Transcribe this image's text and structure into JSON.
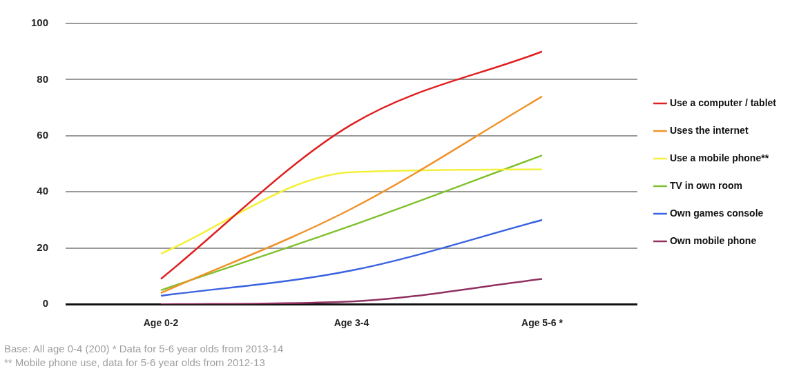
{
  "chart_data": {
    "type": "line",
    "categories": [
      "Age 0-2",
      "Age 3-4",
      "Age 5-6 *"
    ],
    "series": [
      {
        "name": "Use a computer / tablet",
        "color": "#e02020",
        "values": [
          9,
          64,
          90
        ]
      },
      {
        "name": "Uses the internet",
        "color": "#f0922a",
        "values": [
          4,
          34,
          74
        ]
      },
      {
        "name": "Use a mobile phone**",
        "color": "#f4f03a",
        "values": [
          18,
          47,
          48
        ]
      },
      {
        "name": "TV in own room",
        "color": "#80c02c",
        "values": [
          5,
          28,
          53
        ]
      },
      {
        "name": "Own games console",
        "color": "#3a62e0",
        "values": [
          3,
          12,
          30
        ]
      },
      {
        "name": "Own mobile phone",
        "color": "#903060",
        "values": [
          0,
          1,
          9
        ]
      }
    ],
    "ylim": [
      0,
      100
    ],
    "yticks": [
      0,
      20,
      40,
      60,
      80,
      100
    ],
    "grid": "y",
    "legend": "right",
    "marker": "none",
    "line_style": "solid",
    "annotations": [
      "Base: All age 0-4 (200) * Data for 5-6 year olds from 2013-14",
      "** Mobile phone use, data for 5-6 year olds from 2012-13"
    ]
  }
}
